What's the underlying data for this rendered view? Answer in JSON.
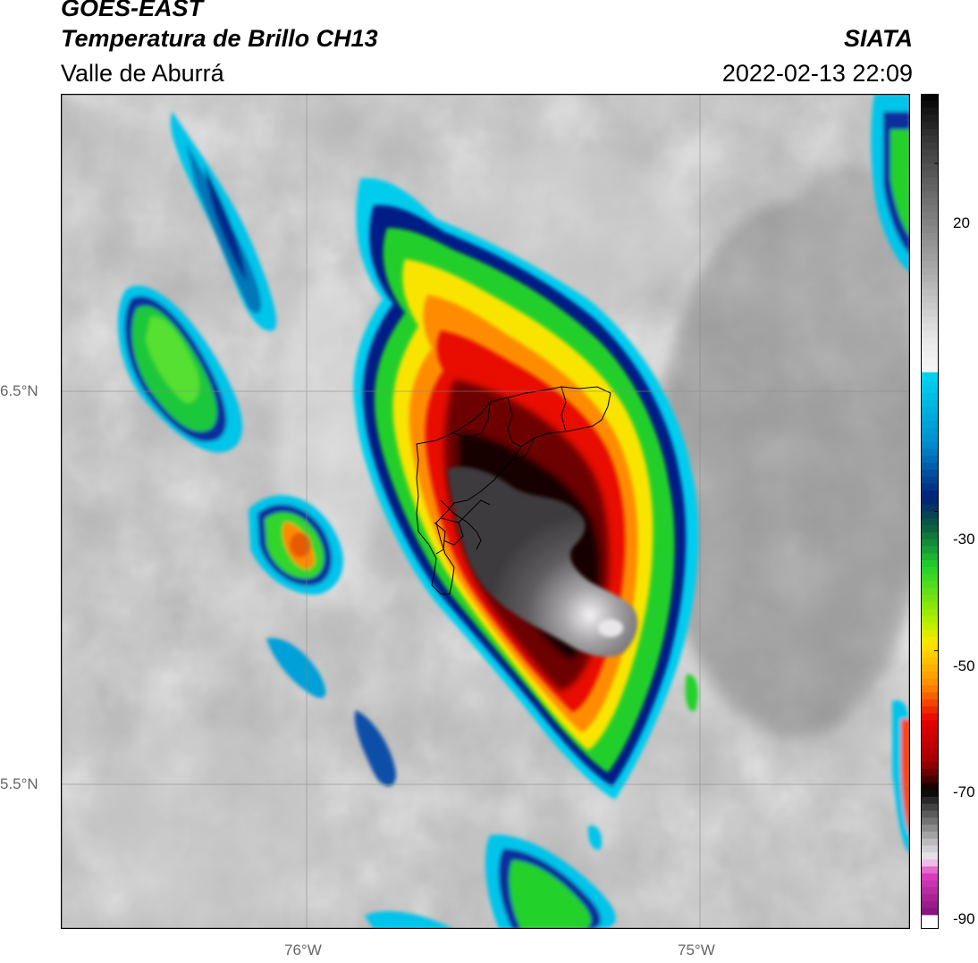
{
  "header": {
    "satellite": "GOES-EAST",
    "product": "Temperatura de Brillo CH13",
    "region": "Valle de Aburrá",
    "organization": "SIATA",
    "datetime": "2022-02-13 22:09"
  },
  "map": {
    "lat_labels": [
      "6.5°N",
      "5.5°N"
    ],
    "lon_labels": [
      "76°W",
      "75°W"
    ],
    "lat_range": [
      5.13,
      7.25
    ],
    "lon_range": [
      -76.62,
      -74.47
    ],
    "grid": true
  },
  "colorbar": {
    "min": -90,
    "max": 30,
    "tick_labels": [
      "20",
      "-30",
      "-50",
      "-70",
      "-90"
    ],
    "ticks": [
      20,
      -30,
      -50,
      -70,
      -90
    ],
    "colors": {
      "warm_gray_high": "#1a1a1a",
      "warm_gray_low": "#e6e6e6",
      "cyan": "#00d5f0",
      "navy": "#001f7a",
      "green": "#22d12b",
      "yellow": "#ffe600",
      "orange": "#ff8a00",
      "red": "#e60000",
      "dark_red": "#330000",
      "black": "#000000",
      "overshoot_gray": "#c8c6c8",
      "magenta": "#e040c0",
      "purple": "#80107a"
    }
  }
}
